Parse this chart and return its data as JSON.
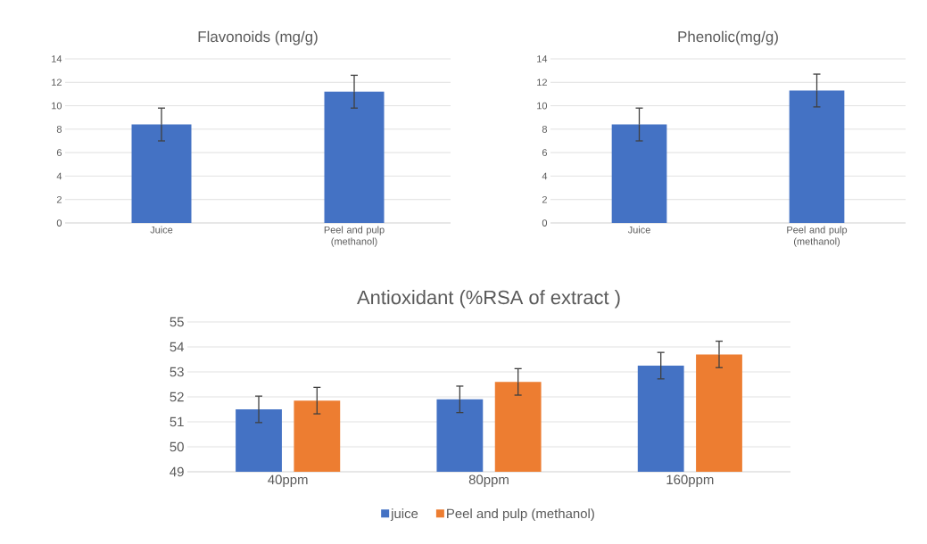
{
  "chart_data": [
    {
      "type": "bar",
      "title": "Flavonoids (mg/g)",
      "categories": [
        "Juice",
        "Peel and pulp (methanol)"
      ],
      "values": [
        8.4,
        11.2
      ],
      "errors": [
        1.4,
        1.4
      ],
      "color": "#4472c4",
      "ylim": [
        0,
        14
      ],
      "yticks": [
        0,
        2,
        4,
        6,
        8,
        10,
        12,
        14
      ],
      "grid": "y"
    },
    {
      "type": "bar",
      "title": "Phenolic(mg/g)",
      "categories": [
        "Juice",
        "Peel and pulp (methanol)"
      ],
      "values": [
        8.4,
        11.3
      ],
      "errors": [
        1.4,
        1.4
      ],
      "color": "#4472c4",
      "ylim": [
        0,
        14
      ],
      "yticks": [
        0,
        2,
        4,
        6,
        8,
        10,
        12,
        14
      ],
      "grid": "y"
    },
    {
      "type": "bar",
      "title": "Antioxidant (%RSA of extract )",
      "categories": [
        "40ppm",
        "80ppm",
        "160ppm"
      ],
      "series": [
        {
          "name": "juice",
          "color": "#4472c4",
          "values": [
            51.5,
            51.9,
            53.25
          ],
          "errors": [
            0.53,
            0.53,
            0.53
          ]
        },
        {
          "name": "Peel and pulp (methanol)",
          "color": "#ed7d31",
          "values": [
            51.85,
            52.6,
            53.7
          ],
          "errors": [
            0.53,
            0.53,
            0.53
          ]
        }
      ],
      "ylim": [
        49,
        55
      ],
      "yticks": [
        49,
        50,
        51,
        52,
        53,
        54,
        55
      ],
      "grid": "y",
      "legend": "bottom"
    }
  ]
}
